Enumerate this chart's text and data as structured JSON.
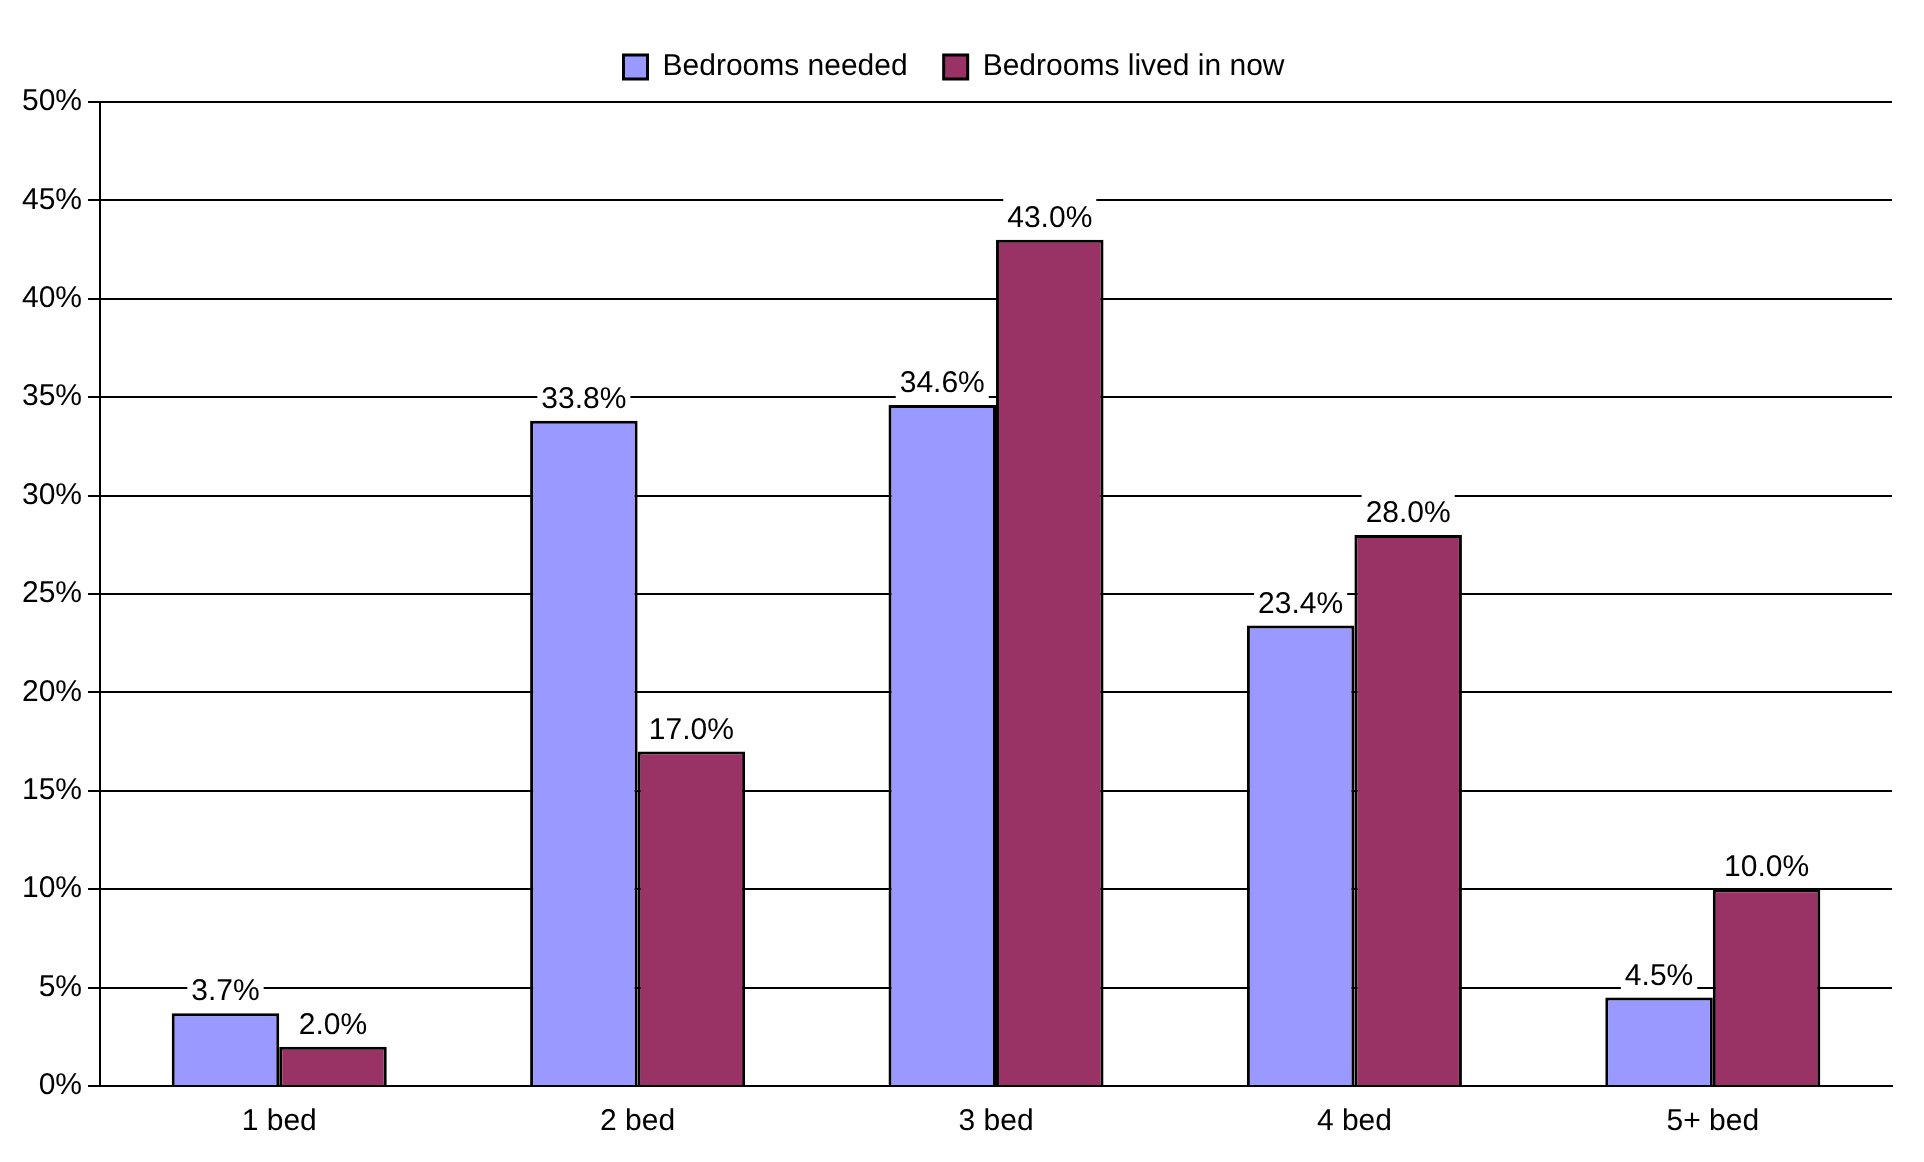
{
  "chart_data": {
    "type": "bar",
    "categories": [
      "1 bed",
      "2 bed",
      "3 bed",
      "4 bed",
      "5+ bed"
    ],
    "series": [
      {
        "name": "Bedrooms needed",
        "color": "#9999ff",
        "values": [
          3.7,
          33.8,
          34.6,
          23.4,
          4.5
        ],
        "value_labels": [
          "3.7%",
          "33.8%",
          "34.6%",
          "23.4%",
          "4.5%"
        ]
      },
      {
        "name": "Bedrooms lived in now",
        "color": "#993366",
        "values": [
          2.0,
          17.0,
          43.0,
          28.0,
          10.0
        ],
        "value_labels": [
          "2.0%",
          "17.0%",
          "43.0%",
          "28.0%",
          "10.0%"
        ]
      }
    ],
    "ylim": [
      0,
      50
    ],
    "yticks": [
      {
        "value": 0,
        "label": "0%"
      },
      {
        "value": 5,
        "label": "5%"
      },
      {
        "value": 10,
        "label": "10%"
      },
      {
        "value": 15,
        "label": "15%"
      },
      {
        "value": 20,
        "label": "20%"
      },
      {
        "value": 25,
        "label": "25%"
      },
      {
        "value": 30,
        "label": "30%"
      },
      {
        "value": 35,
        "label": "35%"
      },
      {
        "value": 40,
        "label": "40%"
      },
      {
        "value": 45,
        "label": "45%"
      },
      {
        "value": 50,
        "label": "50%"
      }
    ],
    "grid": "y",
    "legend": "top"
  }
}
